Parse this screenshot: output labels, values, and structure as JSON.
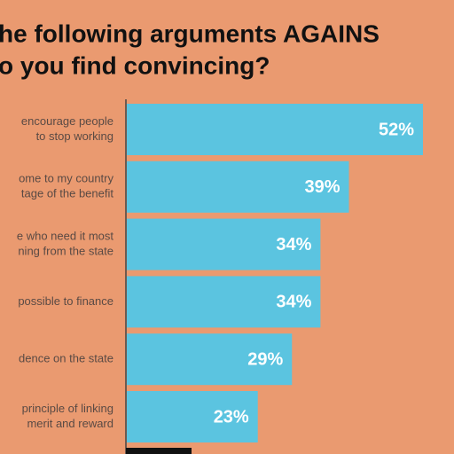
{
  "chart_data": {
    "type": "bar",
    "orientation": "horizontal",
    "title": [
      "he following arguments AGAINS",
      "o you find convincing?"
    ],
    "categories": [
      [
        "encourage people",
        "to stop working"
      ],
      [
        "ome to my country",
        "tage of the benefit"
      ],
      [
        "e who need it most",
        "ning from the state"
      ],
      [
        "possible to finance"
      ],
      [
        "dence on the state"
      ],
      [
        "principle of linking",
        "merit and reward"
      ]
    ],
    "values": [
      52,
      39,
      34,
      34,
      29,
      23
    ],
    "value_labels": [
      "52%",
      "39%",
      "34%",
      "34%",
      "29%",
      "23%"
    ],
    "color": "#5bc4e0"
  }
}
